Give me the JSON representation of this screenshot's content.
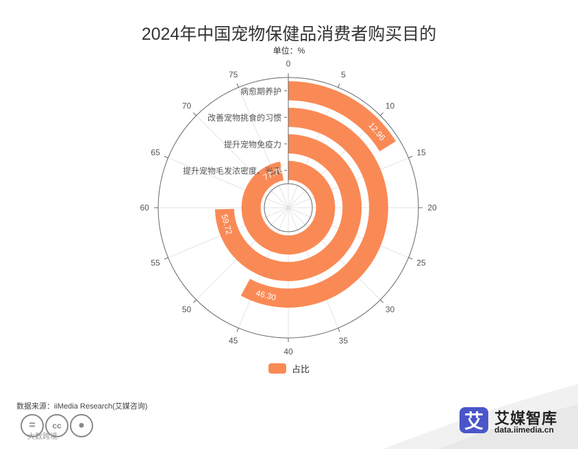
{
  "title": "2024年中国宠物保健品消费者购买目的",
  "unit_label": "单位：%",
  "legend": {
    "label": "占比",
    "color": "#FA8A55"
  },
  "source": "数据来源：iiMedia Research(艾媒咨询)",
  "brand": {
    "name": "艾媒智库",
    "url": "data.iimedia.cn",
    "logo_char": "艾"
  },
  "watermark": "大数跨境",
  "icons": [
    "equals-icon",
    "cc-icon",
    "person-icon"
  ],
  "chart_data": {
    "type": "polar-bar",
    "angle_axis": {
      "min": 0,
      "max": 80,
      "ticks": [
        0,
        5,
        10,
        15,
        20,
        25,
        30,
        35,
        40,
        45,
        50,
        55,
        60,
        65,
        70,
        75
      ]
    },
    "categories": [
      "提升宠物毛发浓密度、光泽",
      "提升宠物免疫力",
      "改善宠物挑食的习惯",
      "病愈期养护"
    ],
    "series": [
      {
        "name": "占比",
        "values": [
          77.78,
          59.72,
          46.3,
          12.96
        ],
        "color": "#FA8A55"
      }
    ],
    "data_labels": [
      "77.78",
      "59.72",
      "46.30",
      "12.96"
    ]
  }
}
